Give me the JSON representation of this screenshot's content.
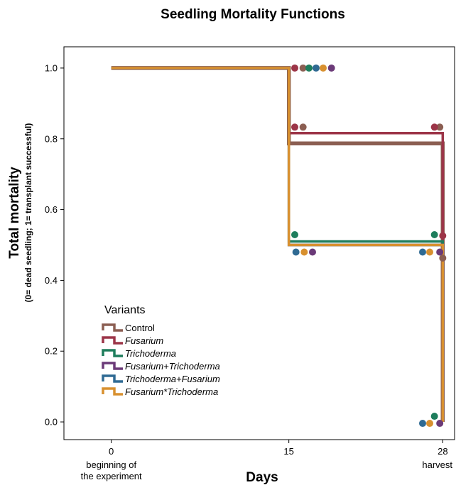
{
  "chart_data": {
    "type": "line",
    "title": "Seedling Mortality Functions",
    "xlabel": "Days",
    "ylabel": "Total mortality",
    "ylabel_sub": "(0= dead seedling; 1= transplant successful)",
    "xlim": [
      -4,
      29
    ],
    "ylim": [
      -0.05,
      1.06
    ],
    "x_ticks": [
      {
        "value": 0,
        "label": "0",
        "sublabel": [
          "beginning of",
          "the experiment"
        ]
      },
      {
        "value": 15,
        "label": "15",
        "sublabel": []
      },
      {
        "value": 28,
        "label": "28",
        "sublabel": [
          "harvest"
        ]
      }
    ],
    "y_ticks": [
      {
        "value": 0.0,
        "label": "0.0"
      },
      {
        "value": 0.2,
        "label": "0.2"
      },
      {
        "value": 0.4,
        "label": "0.4"
      },
      {
        "value": 0.6,
        "label": "0.6"
      },
      {
        "value": 0.8,
        "label": "0.8"
      },
      {
        "value": 1.0,
        "label": "1.0"
      }
    ],
    "legend": {
      "title": "Variants",
      "position": "bottom-left"
    },
    "series": [
      {
        "name": "Control",
        "italic": false,
        "color": "#8b5e52",
        "stroke": 5.5,
        "x": [
          0,
          15,
          15,
          28,
          28
        ],
        "y": [
          1.0,
          1.0,
          0.787,
          0.787,
          0.0
        ],
        "markers": [
          {
            "x": 16.2,
            "y": 1.0
          },
          {
            "x": 16.2,
            "y": 0.833
          },
          {
            "x": 27.75,
            "y": 0.833
          },
          {
            "x": 28.0,
            "y": 0.463
          }
        ]
      },
      {
        "name": "Fusarium",
        "italic": true,
        "color": "#9c3548",
        "stroke": 3.5,
        "x": [
          0,
          15,
          15,
          28,
          28
        ],
        "y": [
          1.0,
          1.0,
          0.816,
          0.816,
          0.0
        ],
        "markers": [
          {
            "x": 15.5,
            "y": 1.0
          },
          {
            "x": 15.5,
            "y": 0.833
          },
          {
            "x": 27.3,
            "y": 0.833
          },
          {
            "x": 28.0,
            "y": 0.526
          }
        ]
      },
      {
        "name": "Trichoderma",
        "italic": true,
        "color": "#1e7d5c",
        "stroke": 3.5,
        "x": [
          0,
          15,
          15,
          28,
          28
        ],
        "y": [
          1.0,
          1.0,
          0.51,
          0.51,
          0.0
        ],
        "markers": [
          {
            "x": 16.7,
            "y": 1.0
          },
          {
            "x": 15.5,
            "y": 0.529
          },
          {
            "x": 27.3,
            "y": 0.529
          },
          {
            "x": 27.3,
            "y": 0.016
          }
        ]
      },
      {
        "name": "Fusarium+Trichoderma",
        "italic": true,
        "color": "#6b3a78",
        "stroke": 3.5,
        "x": [
          0,
          15,
          15,
          28,
          28
        ],
        "y": [
          1.0,
          1.0,
          0.5,
          0.5,
          0.0
        ],
        "markers": [
          {
            "x": 18.6,
            "y": 1.0
          },
          {
            "x": 17.0,
            "y": 0.48
          },
          {
            "x": 27.75,
            "y": 0.48
          },
          {
            "x": 27.75,
            "y": -0.004
          }
        ]
      },
      {
        "name": "Trichoderma+Fusarium",
        "italic": true,
        "color": "#2f6a93",
        "stroke": 3.5,
        "x": [
          0,
          15,
          15,
          28,
          28
        ],
        "y": [
          1.0,
          1.0,
          0.5,
          0.5,
          0.0
        ],
        "markers": [
          {
            "x": 17.3,
            "y": 1.0
          },
          {
            "x": 15.6,
            "y": 0.48
          },
          {
            "x": 26.3,
            "y": 0.48
          },
          {
            "x": 26.3,
            "y": -0.004
          }
        ]
      },
      {
        "name": "Fusarium*Trichoderma",
        "italic": true,
        "color": "#d8902f",
        "stroke": 3.5,
        "x": [
          0,
          15,
          15,
          28,
          28
        ],
        "y": [
          1.0,
          1.0,
          0.5,
          0.5,
          0.0
        ],
        "markers": [
          {
            "x": 17.9,
            "y": 1.0
          },
          {
            "x": 16.3,
            "y": 0.48
          },
          {
            "x": 26.9,
            "y": 0.48
          },
          {
            "x": 26.9,
            "y": -0.004
          }
        ]
      }
    ]
  }
}
